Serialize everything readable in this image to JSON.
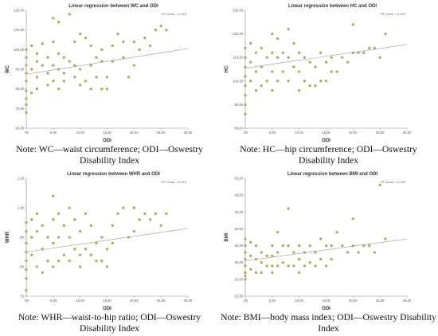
{
  "colors": {
    "point": "#b5b04f",
    "point_stroke": "#8f8a33",
    "fit_line": "#9a9a9a",
    "axis": "#8a8a8a"
  },
  "panels": [
    {
      "caption": "Note: WC—waist circumference; ODI—Oswestry Disability Index"
    },
    {
      "caption": "Note: HC—hip circumference; ODI—Oswestry Disability Index"
    },
    {
      "caption": "Note: WHR—waist-to-hip ratio; ODI—Oswestry Disability Index"
    },
    {
      "caption": "Note: BMI—body mass index; ODI—Oswestry Disability Index"
    }
  ],
  "chart_data": [
    {
      "type": "scatter",
      "title": "Linear regression between WC and ODI",
      "r2_label": "R² Linear = 0.063",
      "xlabel": "ODI",
      "ylabel": "WC",
      "xlim": [
        0,
        30
      ],
      "ylim": [
        60,
        120
      ],
      "xticks": [
        ".00",
        "5,00",
        "10,00",
        "15,00",
        "20,00",
        "25,00",
        "30,00"
      ],
      "yticks": [
        "60,00",
        "70,00",
        "80,00",
        "90,00",
        "100,00",
        "110,00",
        "120,00"
      ],
      "fit": {
        "x": [
          0,
          30
        ],
        "y": [
          87.5,
          100.5
        ]
      },
      "x": [
        0,
        0,
        0,
        0,
        0,
        0,
        0,
        0,
        0,
        1,
        1,
        1,
        2,
        2,
        2,
        2,
        3,
        3,
        4,
        4,
        4,
        5,
        5,
        5,
        5,
        6,
        6,
        6,
        6,
        7,
        7,
        7,
        8,
        8,
        9,
        9,
        9,
        10,
        10,
        10,
        11,
        11,
        12,
        12,
        12,
        13,
        13,
        14,
        14,
        14,
        15,
        15,
        16,
        16,
        17,
        18,
        18,
        19,
        20,
        20,
        21,
        22,
        23,
        24,
        25,
        26
      ],
      "y": [
        100,
        96,
        92,
        88,
        84,
        79,
        75,
        72,
        68,
        102,
        90,
        78,
        98,
        94,
        86,
        80,
        103,
        92,
        96,
        88,
        82,
        116,
        104,
        92,
        84,
        114,
        98,
        90,
        80,
        96,
        88,
        84,
        118,
        94,
        104,
        92,
        86,
        108,
        90,
        82,
        106,
        84,
        102,
        92,
        80,
        96,
        86,
        100,
        94,
        80,
        86,
        80,
        102,
        94,
        108,
        104,
        96,
        86,
        104,
        92,
        100,
        106,
        102,
        110,
        112,
        110
      ]
    },
    {
      "type": "scatter",
      "title": "Linear regression between HC and ODI",
      "r2_label": "R² Linear = 0.052",
      "xlabel": "ODI",
      "ylabel": "HC",
      "xlim": [
        0,
        30
      ],
      "ylim": [
        80,
        130
      ],
      "xticks": [
        ".00",
        "5,00",
        "10,00",
        "15,00",
        "20,00",
        "25,00",
        "30,00"
      ],
      "yticks": [
        "80,00",
        "90,00",
        "100,00",
        "110,00",
        "120,00",
        "130,00"
      ],
      "fit": {
        "x": [
          0,
          30
        ],
        "y": [
          105.5,
          115.5
        ]
      },
      "x": [
        0,
        0,
        0,
        0,
        0,
        0,
        0,
        0,
        1,
        1,
        1,
        2,
        2,
        2,
        3,
        3,
        3,
        4,
        4,
        5,
        5,
        5,
        5,
        6,
        6,
        6,
        7,
        7,
        8,
        8,
        8,
        9,
        9,
        10,
        10,
        10,
        11,
        11,
        12,
        12,
        13,
        13,
        14,
        14,
        15,
        15,
        16,
        16,
        17,
        18,
        19,
        20,
        20,
        21,
        22,
        23,
        24,
        25,
        26
      ],
      "y": [
        114,
        110,
        106,
        102,
        98,
        94,
        90,
        86,
        116,
        108,
        100,
        112,
        104,
        96,
        114,
        106,
        98,
        110,
        100,
        120,
        112,
        104,
        96,
        118,
        110,
        100,
        112,
        104,
        122,
        110,
        100,
        116,
        106,
        112,
        104,
        96,
        110,
        100,
        108,
        98,
        106,
        98,
        112,
        100,
        108,
        100,
        110,
        104,
        104,
        110,
        108,
        124,
        112,
        112,
        112,
        114,
        114,
        110,
        120
      ]
    },
    {
      "type": "scatter",
      "title": "Linear regression between WHR and ODI",
      "r2_label": "R² Linear = 0.013",
      "xlabel": "ODI",
      "ylabel": "WHR",
      "xlim": [
        0,
        30
      ],
      "ylim": [
        0.7,
        1.1
      ],
      "xticks": [
        ".00",
        "5,00",
        "10,00",
        "15,00",
        "20,00",
        "25,00",
        "30,00"
      ],
      "yticks": [
        ",70",
        ",80",
        ",90",
        "1,00",
        "1,10"
      ],
      "fit": {
        "x": [
          0,
          30
        ],
        "y": [
          0.85,
          0.93
        ]
      },
      "x": [
        0,
        0,
        0,
        0,
        0,
        0,
        0,
        0,
        1,
        1,
        1,
        2,
        2,
        2,
        3,
        3,
        3,
        4,
        4,
        5,
        5,
        5,
        5,
        6,
        6,
        6,
        7,
        7,
        8,
        8,
        8,
        9,
        9,
        10,
        10,
        10,
        11,
        11,
        12,
        12,
        13,
        13,
        14,
        14,
        15,
        15,
        16,
        16,
        17,
        18,
        19,
        20,
        20,
        21,
        22,
        23,
        24,
        25,
        26
      ],
      "y": [
        0.95,
        0.92,
        0.88,
        0.85,
        0.82,
        0.79,
        0.76,
        0.72,
        0.96,
        0.9,
        0.84,
        0.98,
        0.92,
        0.8,
        0.94,
        0.86,
        0.78,
        0.9,
        0.82,
        1.04,
        0.96,
        0.88,
        0.8,
        0.98,
        0.9,
        0.82,
        0.94,
        0.84,
        1.0,
        0.9,
        0.82,
        0.96,
        0.86,
        0.92,
        0.84,
        0.8,
        0.98,
        0.86,
        0.94,
        0.84,
        0.88,
        0.82,
        0.9,
        0.82,
        0.86,
        0.8,
        0.94,
        0.88,
        0.98,
        1.0,
        0.9,
        1.0,
        0.92,
        0.96,
        0.98,
        0.96,
        0.98,
        0.94,
        0.98
      ]
    },
    {
      "type": "scatter",
      "title": "Linear regression between BMI and ODI",
      "r2_label": "R² Linear = 0.094",
      "xlabel": "ODI",
      "ylabel": "BMI",
      "xlim": [
        0,
        30
      ],
      "ylim": [
        15,
        50
      ],
      "xticks": [
        ".00",
        "5,00",
        "10,00",
        "15,00",
        "20,00",
        "25,00",
        "30,00"
      ],
      "yticks": [
        "15,00",
        "20,00",
        "25,00",
        "30,00",
        "35,00",
        "40,00",
        "45,00",
        "50,00"
      ],
      "fit": {
        "x": [
          0,
          30
        ],
        "y": [
          25.5,
          32
        ]
      },
      "x": [
        0,
        0,
        0,
        0,
        0,
        0,
        0,
        0,
        1,
        1,
        1,
        2,
        2,
        2,
        3,
        3,
        3,
        4,
        4,
        5,
        5,
        5,
        5,
        6,
        6,
        6,
        7,
        7,
        8,
        8,
        8,
        9,
        9,
        10,
        10,
        10,
        11,
        11,
        12,
        12,
        13,
        13,
        14,
        14,
        15,
        15,
        16,
        16,
        17,
        18,
        19,
        20,
        20,
        21,
        22,
        23,
        24,
        25,
        26
      ],
      "y": [
        32,
        30,
        28,
        26,
        24,
        22,
        21,
        20,
        31,
        27,
        23,
        30,
        26,
        22,
        28,
        25,
        22,
        27,
        24,
        30,
        27,
        24,
        22,
        34,
        28,
        24,
        30,
        25,
        41,
        30,
        24,
        28,
        24,
        30,
        26,
        22,
        28,
        24,
        30,
        25,
        28,
        24,
        32,
        26,
        30,
        24,
        30,
        26,
        34,
        30,
        28,
        38,
        30,
        28,
        30,
        30,
        28,
        48,
        32
      ]
    }
  ]
}
